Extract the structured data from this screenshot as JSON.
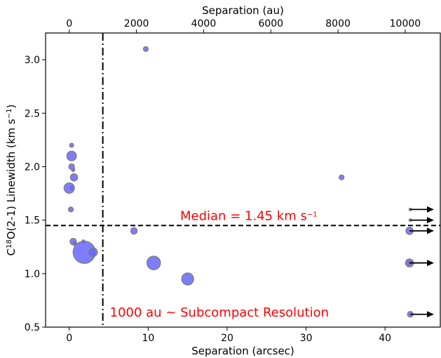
{
  "chart_data": {
    "type": "scatter",
    "xlabel": "Separation (arcsec)",
    "x2label": "Separation (au)",
    "ylabel_main": "C",
    "ylabel_sup": "18",
    "ylabel_mid": "O(2-1) Linewidth (km s",
    "ylabel_sup2": "−1",
    "ylabel_end": ")",
    "xlim": [
      -3,
      47
    ],
    "ylim": [
      0.5,
      3.25
    ],
    "x_ticks": [
      0,
      10,
      20,
      30,
      40
    ],
    "y_ticks": [
      0.5,
      1.0,
      1.5,
      2.0,
      2.5,
      3.0
    ],
    "x_tick_labels": [
      "0",
      "10",
      "20",
      "30",
      "40"
    ],
    "y_tick_labels": [
      "0.5",
      "1.0",
      "1.5",
      "2.0",
      "2.5",
      "3.0"
    ],
    "x2_ticks_au": [
      0,
      2000,
      4000,
      6000,
      8000,
      10000
    ],
    "x2_tick_labels": [
      "0",
      "2000",
      "4000",
      "6000",
      "8000",
      "10000"
    ],
    "au_per_arcsec": 235,
    "median_value": 1.45,
    "median_label": "Median = 1.45 km s",
    "median_label_sup": "−1",
    "resolution_x": 4.25,
    "resolution_label": "1000 au ~ Subcompact Resolution",
    "colors": {
      "point_fill": "#6666ff",
      "point_stroke": "#808080",
      "annotation": "#ff0000",
      "lines": "#000000"
    },
    "points": [
      {
        "x": 9.7,
        "y": 3.1,
        "size": 0.06
      },
      {
        "x": 0.3,
        "y": 2.2,
        "size": 0.05
      },
      {
        "x": 0.3,
        "y": 2.1,
        "size": 0.12
      },
      {
        "x": 0.3,
        "y": 2.0,
        "size": 0.07
      },
      {
        "x": 0.5,
        "y": 1.97,
        "size": 0.04
      },
      {
        "x": 0.6,
        "y": 1.9,
        "size": 0.09
      },
      {
        "x": 0.3,
        "y": 1.8,
        "size": 0.04
      },
      {
        "x": 0.0,
        "y": 1.8,
        "size": 0.13
      },
      {
        "x": 0.2,
        "y": 1.6,
        "size": 0.06
      },
      {
        "x": 34.5,
        "y": 1.9,
        "size": 0.06
      },
      {
        "x": 8.2,
        "y": 1.4,
        "size": 0.08
      },
      {
        "x": 0.5,
        "y": 1.3,
        "size": 0.08
      },
      {
        "x": 0.7,
        "y": 1.28,
        "size": 0.05
      },
      {
        "x": 1.8,
        "y": 1.3,
        "size": 0.04
      },
      {
        "x": 1.9,
        "y": 1.2,
        "size": 0.28
      },
      {
        "x": 3.0,
        "y": 1.2,
        "size": 0.11
      },
      {
        "x": 10.7,
        "y": 1.1,
        "size": 0.17
      },
      {
        "x": 15.0,
        "y": 0.95,
        "size": 0.15
      },
      {
        "x": 43.2,
        "y": 1.6,
        "size": 0.03,
        "arrow": true
      },
      {
        "x": 43.2,
        "y": 1.5,
        "size": 0.03,
        "arrow": true
      },
      {
        "x": 43.1,
        "y": 1.4,
        "size": 0.09,
        "arrow": true
      },
      {
        "x": 43.1,
        "y": 1.1,
        "size": 0.1,
        "arrow": true
      },
      {
        "x": 43.1,
        "y": 1.1,
        "size": 0.05
      },
      {
        "x": 43.2,
        "y": 0.62,
        "size": 0.07,
        "arrow": true
      }
    ]
  }
}
